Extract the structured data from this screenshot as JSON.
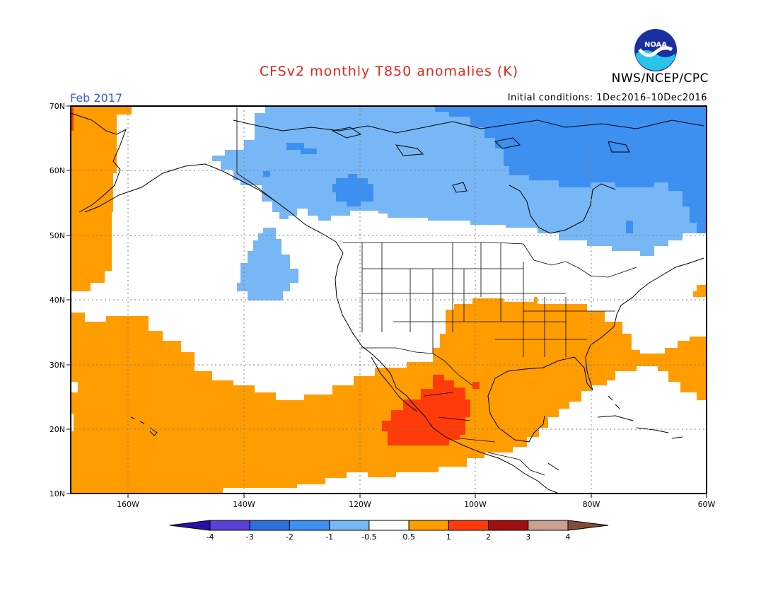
{
  "title": "CFSv2 monthly T850 anomalies (K)",
  "agency": "NWS/NCEP/CPC",
  "logo_text": "NOAA",
  "valid_month": "Feb 2017",
  "initial_conditions": "Initial conditions: 1Dec2016–10Dec2016",
  "map": {
    "lat_labels": [
      "70N",
      "60N",
      "50N",
      "40N",
      "30N",
      "20N",
      "10N"
    ],
    "lon_labels": [
      "160W",
      "140W",
      "120W",
      "100W",
      "80W",
      "60W"
    ]
  },
  "legend": {
    "colors": [
      "#2a0fa8",
      "#5b3fd9",
      "#2b6fdc",
      "#3d8ff0",
      "#78b7f5",
      "#ffffff",
      "#ff9d00",
      "#ff3b0a",
      "#a30f0f",
      "#c8a18f",
      "#7d4e35"
    ],
    "labels": [
      "-4",
      "-3",
      "-2",
      "-1",
      "-0.5",
      "0.5",
      "1",
      "2",
      "3",
      "4"
    ]
  },
  "colors": {
    "warm1": "#ff9d00",
    "warm2": "#ff3b0a",
    "cool1": "#78b7f5",
    "cool2": "#3d8ff0",
    "title": "#e8231e",
    "month": "#3b5fd6"
  }
}
